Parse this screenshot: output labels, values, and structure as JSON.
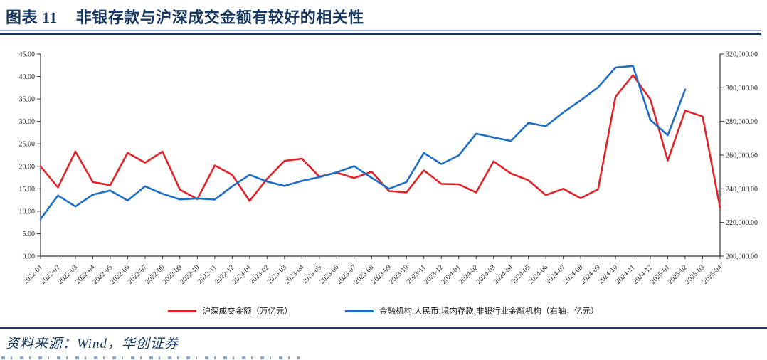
{
  "title": {
    "label": "图表 11",
    "text": "非银存款与沪深成交金额有较好的相关性"
  },
  "source": {
    "text": "资料来源：Wind，华创证券"
  },
  "colors": {
    "red_series": "#E02328",
    "blue_series": "#1F6EC6",
    "navy": "#17375E",
    "axis": "#333333"
  },
  "chart_data": {
    "type": "line",
    "grid": false,
    "legend_position": "bottom",
    "x": [
      "2022-01",
      "2022-02",
      "2022-03",
      "2022-04",
      "2022-05",
      "2022-06",
      "2022-07",
      "2022-08",
      "2022-09",
      "2022-10",
      "2022-11",
      "2022-12",
      "2023-01",
      "2023-02",
      "2023-03",
      "2023-04",
      "2023-05",
      "2023-06",
      "2023-07",
      "2023-08",
      "2023-09",
      "2023-10",
      "2023-11",
      "2023-12",
      "2024-01",
      "2024-02",
      "2024-03",
      "2024-04",
      "2024-05",
      "2024-06",
      "2024-07",
      "2024-08",
      "2024-09",
      "2024-10",
      "2024-11",
      "2024-12",
      "2025-01",
      "2025-02",
      "2025-03",
      "2025-04"
    ],
    "left_axis": {
      "min": 0,
      "max": 45,
      "step": 5,
      "tick_labels": [
        "0.00",
        "5.00",
        "10.00",
        "15.00",
        "20.00",
        "25.00",
        "30.00",
        "35.00",
        "40.00",
        "45.00"
      ]
    },
    "right_axis": {
      "min": 200000,
      "max": 320000,
      "step": 20000,
      "tick_labels": [
        "200,000.00",
        "220,000.00",
        "240,000.00",
        "260,000.00",
        "280,000.00",
        "300,000.00",
        "320,000.00"
      ]
    },
    "series": [
      {
        "name": "沪深成交金额（万亿元）",
        "color": "#E02328",
        "axis": "left",
        "values": [
          20.0,
          15.3,
          23.3,
          16.5,
          15.8,
          23.0,
          20.8,
          23.3,
          14.8,
          12.7,
          20.2,
          18.1,
          12.3,
          17.2,
          21.2,
          21.7,
          17.7,
          18.6,
          17.4,
          18.8,
          14.5,
          14.2,
          19.1,
          16.1,
          16.0,
          14.2,
          21.1,
          18.4,
          16.9,
          13.6,
          15.0,
          12.9,
          14.9,
          35.5,
          40.3,
          34.9,
          21.3,
          32.4,
          31.1,
          10.8
        ]
      },
      {
        "name": "金融机构:人民币:境内存款:非银行业金融机构（右轴，亿元）",
        "color": "#1F6EC6",
        "axis": "right",
        "values": [
          222000,
          236000,
          229500,
          236500,
          239000,
          233000,
          241500,
          237000,
          233700,
          234300,
          233600,
          241500,
          248300,
          244300,
          241700,
          244700,
          246900,
          249800,
          253400,
          246500,
          240000,
          244000,
          261300,
          254700,
          259800,
          272700,
          270500,
          268400,
          279100,
          277200,
          285300,
          292500,
          300300,
          312000,
          312900,
          280900,
          271800,
          298900,
          null,
          null
        ]
      }
    ]
  }
}
